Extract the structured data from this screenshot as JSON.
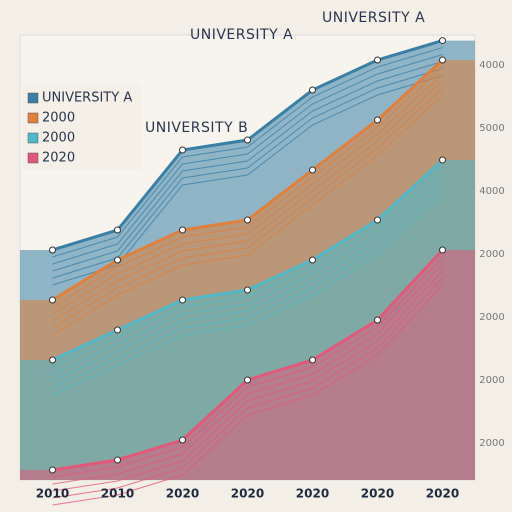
{
  "chart_data": {
    "type": "line",
    "annotations": [
      "UNIVERSITY A",
      "UNIVERSITY A",
      "UNIVERSITY B"
    ],
    "categories": [
      "2010",
      "2010",
      "2020",
      "2020",
      "2020",
      "2020",
      "2020"
    ],
    "right_labels": [
      "4000",
      "5000",
      "4000",
      "2000",
      "2000",
      "2000",
      "2000"
    ],
    "ylim": [
      0,
      8000
    ],
    "grid": false,
    "series": [
      {
        "name": "UNIVERSITY A",
        "color": "#3a7fa6",
        "values": [
          4135,
          4494,
          5933,
          6112,
          7011,
          7551,
          7900
        ]
      },
      {
        "name": "2000",
        "color": "#e0803a",
        "values": [
          3236,
          3955,
          4494,
          4674,
          5573,
          6472,
          7551
        ]
      },
      {
        "name": "2000",
        "color": "#4fb8c9",
        "values": [
          2157,
          2697,
          3236,
          3416,
          3955,
          4674,
          5753
        ]
      },
      {
        "name": "2020",
        "color": "#e2587a",
        "values": [
          180,
          360,
          719,
          1798,
          2157,
          2876,
          4135
        ]
      }
    ]
  }
}
